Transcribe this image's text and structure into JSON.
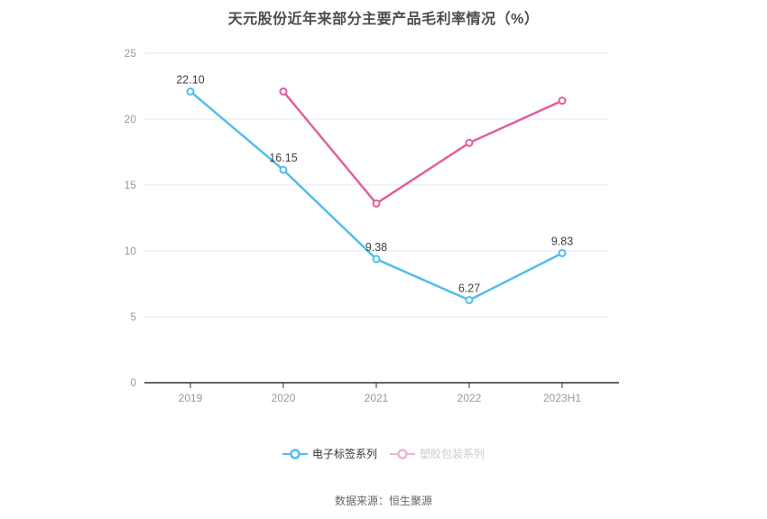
{
  "chart_data": {
    "type": "line",
    "title": "天元股份近年来部分主要产品毛利率情况（%）",
    "categories": [
      "2019",
      "2020",
      "2021",
      "2022",
      "2023H1"
    ],
    "series": [
      {
        "name": "电子标签系列",
        "values": [
          22.1,
          16.15,
          9.38,
          6.27,
          9.83
        ],
        "labels": [
          "22.10",
          "16.15",
          "9.38",
          "6.27",
          "9.83"
        ],
        "show_labels": true,
        "color": "#54bdeb",
        "legend_marker_color": "#54bdeb",
        "legend_text_color": "#333333"
      },
      {
        "name": "塑胶包装系列",
        "values": [
          null,
          22.1,
          13.6,
          18.2,
          21.4
        ],
        "labels": [],
        "show_labels": false,
        "color": "#e0609f",
        "legend_marker_color": "#f0b4d6",
        "legend_text_color": "#cccccc"
      }
    ],
    "ylim": [
      0,
      25
    ],
    "yticks": [
      0,
      5,
      10,
      15,
      20,
      25
    ],
    "grid": true,
    "legend_position": "bottom"
  },
  "footer": {
    "source": "数据来源：恒生聚源"
  },
  "colors": {
    "grid_line": "#e2e7f1",
    "axis_line": "#333333",
    "tick_label": "#999999",
    "data_label": "#404040",
    "marker_fill": "#ffffff"
  }
}
